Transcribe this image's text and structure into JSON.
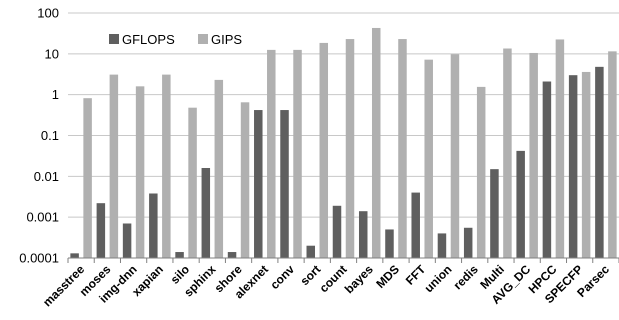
{
  "chart_data": {
    "type": "bar",
    "y_scale": "log",
    "ylim": [
      0.0001,
      100
    ],
    "yticks": [
      "100",
      "10",
      "1",
      "0.1",
      "0.01",
      "0.001",
      "0.0001"
    ],
    "ytick_values": [
      100,
      10,
      1,
      0.1,
      0.01,
      0.001,
      0.0001
    ],
    "categories": [
      "masstree",
      "moses",
      "img-dnn",
      "xapian",
      "silo",
      "sphinx",
      "shore",
      "alexnet",
      "conv",
      "sort",
      "count",
      "bayes",
      "MDS",
      "FFT",
      "union",
      "redis",
      "Multi",
      "AVG_DC",
      "HPCC",
      "SPECFP",
      "Parsec"
    ],
    "series": [
      {
        "name": "GFLOPS",
        "color": "#5f5f5f",
        "values": [
          0.00013,
          0.0022,
          0.0007,
          0.0038,
          0.00014,
          0.016,
          0.00014,
          0.42,
          0.42,
          0.0002,
          0.0019,
          0.0014,
          0.0005,
          0.004,
          0.0004,
          0.00055,
          0.015,
          0.042,
          2.1,
          3.0,
          4.8
        ]
      },
      {
        "name": "GIPS",
        "color": "#b0b0b0",
        "values": [
          0.82,
          3.1,
          1.6,
          3.1,
          0.48,
          2.3,
          0.65,
          12.5,
          12.5,
          18.5,
          23.0,
          43.0,
          23.0,
          7.2,
          9.8,
          1.55,
          13.5,
          10.5,
          22.5,
          3.6,
          11.5
        ]
      }
    ],
    "legend_position": "top-left",
    "grid": true,
    "colors": {
      "grid": "#c8c8c8",
      "axis": "#808080"
    }
  }
}
